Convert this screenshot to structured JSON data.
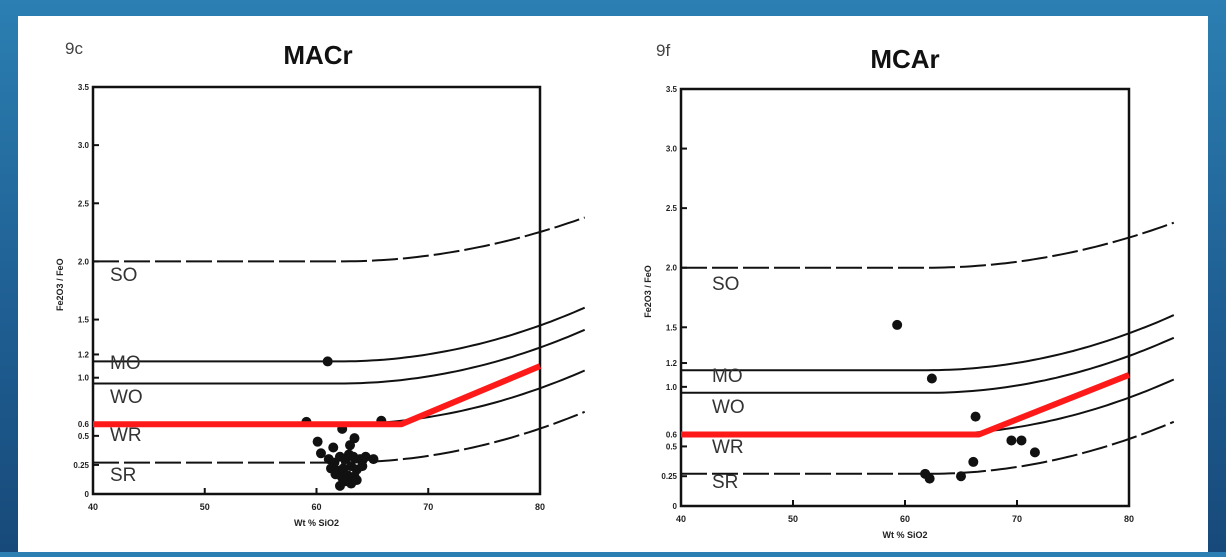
{
  "chart_data": [
    {
      "type": "scatter",
      "panel_label": "9c",
      "title": "MACr",
      "xlabel": "Wt % SiO2",
      "ylabel": "Fe2O3 / FeO",
      "xlim": [
        40,
        80
      ],
      "ylim": [
        0,
        3.5
      ],
      "x_ticks": [
        "40",
        "50",
        "60",
        "70",
        "80"
      ],
      "y_ticks": [
        "0",
        "0.25",
        "0.5",
        "0.6",
        "1.0",
        "1.2",
        "1.5",
        "2.0",
        "2.5",
        "3.0",
        "3.5"
      ],
      "regions": [
        "SO",
        "MO",
        "WO",
        "WR",
        "SR"
      ],
      "points": [
        {
          "x": 59.1,
          "y": 0.62
        },
        {
          "x": 61.0,
          "y": 1.14
        },
        {
          "x": 65.8,
          "y": 0.63
        },
        {
          "x": 62.3,
          "y": 0.56
        },
        {
          "x": 60.1,
          "y": 0.45
        },
        {
          "x": 60.4,
          "y": 0.35
        },
        {
          "x": 61.5,
          "y": 0.4
        },
        {
          "x": 63.0,
          "y": 0.42
        },
        {
          "x": 63.4,
          "y": 0.48
        },
        {
          "x": 61.1,
          "y": 0.3
        },
        {
          "x": 61.6,
          "y": 0.27
        },
        {
          "x": 62.1,
          "y": 0.32
        },
        {
          "x": 62.6,
          "y": 0.3
        },
        {
          "x": 62.9,
          "y": 0.34
        },
        {
          "x": 63.3,
          "y": 0.32
        },
        {
          "x": 63.9,
          "y": 0.3
        },
        {
          "x": 64.4,
          "y": 0.32
        },
        {
          "x": 65.1,
          "y": 0.3
        },
        {
          "x": 61.3,
          "y": 0.22
        },
        {
          "x": 61.9,
          "y": 0.2
        },
        {
          "x": 62.4,
          "y": 0.22
        },
        {
          "x": 63.1,
          "y": 0.24
        },
        {
          "x": 63.6,
          "y": 0.21
        },
        {
          "x": 64.1,
          "y": 0.24
        },
        {
          "x": 61.7,
          "y": 0.17
        },
        {
          "x": 62.3,
          "y": 0.14
        },
        {
          "x": 62.8,
          "y": 0.16
        },
        {
          "x": 63.4,
          "y": 0.15
        },
        {
          "x": 62.6,
          "y": 0.11
        },
        {
          "x": 63.1,
          "y": 0.09
        },
        {
          "x": 62.1,
          "y": 0.07
        },
        {
          "x": 63.6,
          "y": 0.12
        }
      ],
      "red_line": [
        [
          40,
          0.6
        ],
        [
          67.6,
          0.6
        ],
        [
          80,
          1.1
        ]
      ]
    },
    {
      "type": "scatter",
      "panel_label": "9f",
      "title": "MCAr",
      "xlabel": "Wt % SiO2",
      "ylabel": "Fe2O3 / FeO",
      "xlim": [
        40,
        80
      ],
      "ylim": [
        0,
        3.5
      ],
      "x_ticks": [
        "40",
        "50",
        "60",
        "70",
        "80"
      ],
      "y_ticks": [
        "0",
        "0.25",
        "0.5",
        "0.6",
        "1.0",
        "1.2",
        "1.5",
        "2.0",
        "2.5",
        "3.0",
        "3.5"
      ],
      "regions": [
        "SO",
        "MO",
        "WO",
        "WR",
        "SR"
      ],
      "points": [
        {
          "x": 59.3,
          "y": 1.52
        },
        {
          "x": 62.4,
          "y": 1.07
        },
        {
          "x": 66.3,
          "y": 0.75
        },
        {
          "x": 69.5,
          "y": 0.55
        },
        {
          "x": 70.4,
          "y": 0.55
        },
        {
          "x": 71.6,
          "y": 0.45
        },
        {
          "x": 66.1,
          "y": 0.37
        },
        {
          "x": 61.8,
          "y": 0.27
        },
        {
          "x": 62.2,
          "y": 0.23
        },
        {
          "x": 65.0,
          "y": 0.25
        }
      ],
      "red_line": [
        [
          40,
          0.6
        ],
        [
          66.6,
          0.6
        ],
        [
          80,
          1.1
        ]
      ]
    }
  ]
}
